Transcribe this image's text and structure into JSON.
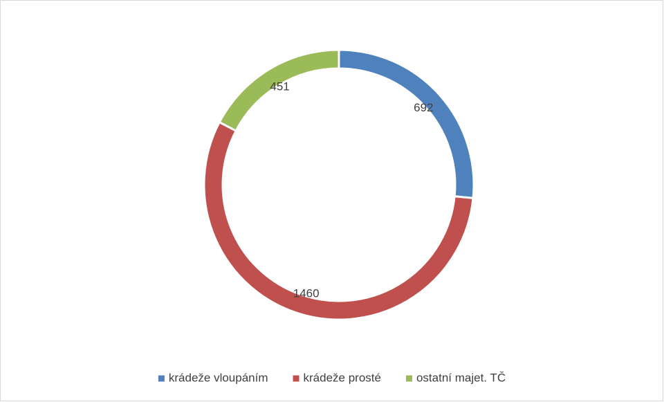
{
  "chart_data": {
    "type": "donut",
    "categories": [
      "krádeže vloupáním",
      "krádeže prosté",
      "ostatní majet. TČ"
    ],
    "values": [
      692,
      1460,
      451
    ],
    "colors": [
      "#4f81bd",
      "#c0504d",
      "#9bbb59"
    ],
    "legend": "bottom"
  }
}
